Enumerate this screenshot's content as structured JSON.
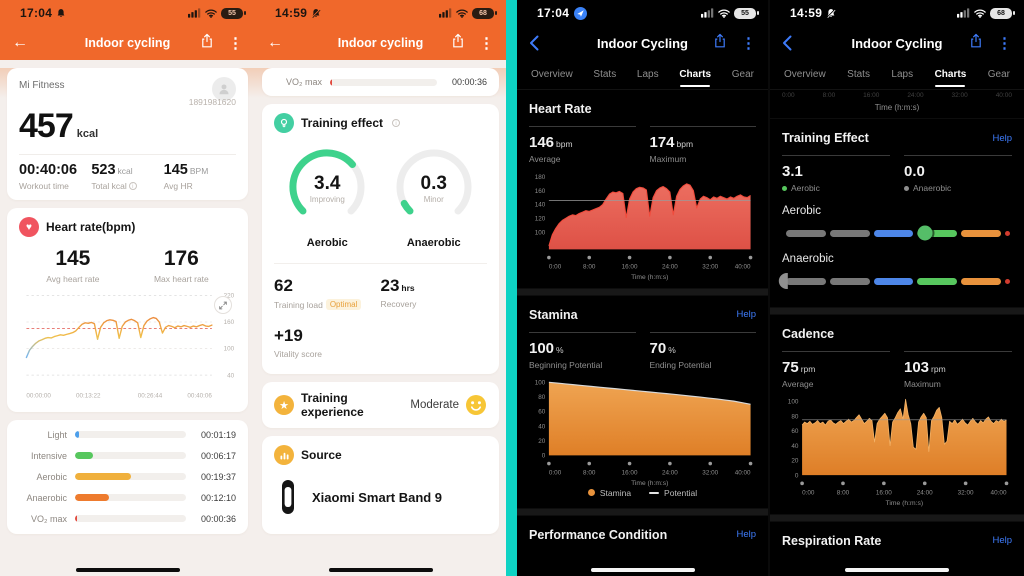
{
  "colors": {
    "orange_header": "#F0682B",
    "teal_divider": "#0ED3C4",
    "gauge_green": "#3ED28C",
    "help_blue": "#3E7BFA",
    "hr_fill_dark": "#E2584C",
    "cadence_fill_dark": "#E8923C"
  },
  "mi1": {
    "status": {
      "time": "17:04",
      "battery": "55"
    },
    "nav": {
      "title": "Indoor cycling"
    },
    "summary": {
      "app_name": "Mi Fitness",
      "record_id": "1891981620",
      "calories": "457",
      "calories_unit": "kcal",
      "stats": [
        {
          "value": "00:40:06",
          "unit": "",
          "label": "Workout time"
        },
        {
          "value": "523",
          "unit": "kcal",
          "label": "Total kcal"
        },
        {
          "value": "145",
          "unit": "BPM",
          "label": "Avg HR"
        }
      ]
    },
    "heart_rate": {
      "title": "Heart rate(bpm)",
      "avg_value": "145",
      "avg_label": "Avg heart rate",
      "max_value": "176",
      "max_label": "Max heart rate"
    },
    "zones": [
      {
        "label": "Light",
        "time": "00:01:19",
        "pct": 4,
        "color": "#4D9FEB"
      },
      {
        "label": "Intensive",
        "time": "00:06:17",
        "pct": 16,
        "color": "#57C75E"
      },
      {
        "label": "Aerobic",
        "time": "00:19:37",
        "pct": 50,
        "color": "#F0B03C"
      },
      {
        "label": "Anaerobic",
        "time": "00:12:10",
        "pct": 31,
        "color": "#EE7B2E"
      },
      {
        "label": "VO₂ max",
        "time": "00:00:36",
        "pct": 1.8,
        "color": "#E24B40"
      }
    ]
  },
  "mi2": {
    "status": {
      "time": "14:59",
      "battery": "68"
    },
    "nav": {
      "title": "Indoor cycling"
    },
    "vo2_row": {
      "label": "VO₂ max",
      "time": "00:00:36",
      "pct": 1.8,
      "color": "#E24B40"
    },
    "training_effect": {
      "title": "Training effect",
      "gauges": [
        {
          "value": "3.4",
          "sub": "Improving",
          "label": "Aerobic",
          "fraction": 0.68
        },
        {
          "value": "0.3",
          "sub": "Minor",
          "label": "Anaerobic",
          "fraction": 0.06
        }
      ],
      "load_value": "62",
      "load_label": "Training load",
      "load_badge": "Optimal",
      "recovery_value": "23",
      "recovery_unit": "hrs",
      "recovery_label": "Recovery",
      "vitality_value": "+19",
      "vitality_label": "Vitality score"
    },
    "experience": {
      "title": "Training experience",
      "value": "Moderate"
    },
    "source": {
      "title": "Source",
      "device": "Xiaomi Smart Band 9"
    }
  },
  "zepp1": {
    "status": {
      "time": "17:04",
      "battery": "55"
    },
    "nav": {
      "title": "Indoor Cycling"
    },
    "tabs": [
      "Overview",
      "Stats",
      "Laps",
      "Charts",
      "Gear"
    ],
    "heart_rate": {
      "title": "Heart Rate",
      "stats": [
        {
          "value": "146",
          "unit": "bpm",
          "label": "Average"
        },
        {
          "value": "174",
          "unit": "bpm",
          "label": "Maximum"
        }
      ]
    },
    "stamina": {
      "title": "Stamina",
      "help": "Help",
      "stats": [
        {
          "value": "100",
          "unit": "%",
          "label": "Beginning Potential"
        },
        {
          "value": "70",
          "unit": "%",
          "label": "Ending Potential"
        }
      ],
      "legend": [
        {
          "label": "Stamina"
        },
        {
          "label": "Potential"
        }
      ]
    },
    "performance": {
      "title": "Performance Condition",
      "help": "Help"
    }
  },
  "zepp2": {
    "status": {
      "time": "14:59",
      "battery": "68"
    },
    "nav": {
      "title": "Indoor Cycling"
    },
    "tabs": [
      "Overview",
      "Stats",
      "Laps",
      "Charts",
      "Gear"
    ],
    "partial_axis_label": "Time (h:m:s)",
    "training_effect": {
      "title": "Training Effect",
      "help": "Help",
      "stats": [
        {
          "value": "3.1",
          "label": "Aerobic",
          "dot": "#57C75E"
        },
        {
          "value": "0.0",
          "label": "Anaerobic",
          "dot": "#8E8E8E"
        }
      ],
      "bars": [
        {
          "label": "Aerobic",
          "marker_pos": 0.62,
          "marker": "circle"
        },
        {
          "label": "Anaerobic",
          "marker_pos": 0.0,
          "marker": "half"
        }
      ],
      "segment_colors": [
        "#787878",
        "#787878",
        "#4D86E8",
        "#57C75E",
        "#E8923C"
      ],
      "tip_color": "#D23B2E"
    },
    "cadence": {
      "title": "Cadence",
      "stats": [
        {
          "value": "75",
          "unit": "rpm",
          "label": "Average"
        },
        {
          "value": "103",
          "unit": "rpm",
          "label": "Maximum"
        }
      ]
    },
    "respiration": {
      "title": "Respiration Rate",
      "help": "Help"
    }
  },
  "chart_data": [
    {
      "id": "mi_hr",
      "type": "line",
      "title": "Heart rate (bpm) over workout",
      "x_ticks": [
        "00:00:00",
        "00:13:22",
        "00:26:44",
        "00:40:06"
      ],
      "y_ticks": [
        220,
        160,
        100,
        40
      ],
      "ylim": [
        40,
        220
      ],
      "grid_lines": [
        160,
        100
      ],
      "avg_line": 145,
      "values": [
        80,
        96,
        105,
        112,
        117,
        120,
        123,
        125,
        124,
        127,
        129,
        131,
        130,
        132,
        134,
        136,
        140,
        148,
        155,
        158,
        157,
        159,
        156,
        121,
        148,
        158,
        163,
        165,
        164,
        161,
        123,
        150,
        160,
        164,
        166,
        163,
        158,
        125,
        152,
        162,
        167,
        170,
        168,
        160,
        135,
        148,
        152,
        150,
        147,
        151,
        149,
        152,
        150,
        148,
        151,
        149,
        152,
        154,
        151,
        150,
        153
      ]
    },
    {
      "id": "zepp_hr",
      "type": "area",
      "x_ticks": [
        "0:00",
        "8:00",
        "16:00",
        "24:00",
        "32:00",
        "40:00"
      ],
      "xlabel": "Time (h:m:s)",
      "y_ticks": [
        180,
        160,
        140,
        120,
        100
      ],
      "ylim": [
        75,
        185
      ],
      "avg_line": 146,
      "values": [
        80,
        96,
        105,
        112,
        117,
        120,
        123,
        125,
        124,
        127,
        129,
        131,
        130,
        132,
        134,
        136,
        140,
        148,
        155,
        158,
        157,
        159,
        156,
        121,
        148,
        158,
        163,
        165,
        164,
        161,
        123,
        150,
        160,
        164,
        166,
        163,
        158,
        125,
        152,
        162,
        167,
        170,
        168,
        160,
        135,
        148,
        152,
        150,
        147,
        151,
        149,
        152,
        150,
        148,
        151,
        149,
        152,
        154,
        151,
        150,
        153
      ]
    },
    {
      "id": "stamina",
      "type": "area",
      "x_ticks": [
        "0:00",
        "8:00",
        "16:00",
        "24:00",
        "32:00",
        "40:00"
      ],
      "xlabel": "Time (h:m:s)",
      "y_ticks": [
        100,
        80,
        60,
        40,
        20,
        0
      ],
      "ylim": [
        0,
        104
      ],
      "series_names": [
        "Stamina",
        "Potential"
      ],
      "values": [
        100,
        99,
        97.8,
        96.7,
        95.6,
        94.5,
        93.4,
        92.3,
        91.2,
        90.1,
        89,
        87.9,
        86.8,
        85.7,
        84.6,
        83.4,
        82.2,
        81,
        79.8,
        78.5,
        77.2,
        75.8,
        74.3,
        72.2,
        70
      ]
    },
    {
      "id": "cadence",
      "type": "area",
      "x_ticks": [
        "0:00",
        "8:00",
        "16:00",
        "24:00",
        "32:00",
        "40:00"
      ],
      "xlabel": "Time (h:m:s)",
      "y_ticks": [
        100,
        80,
        60,
        40,
        20,
        0
      ],
      "ylim": [
        0,
        104
      ],
      "avg_line": 75,
      "values": [
        68,
        72,
        70,
        73,
        69,
        71,
        74,
        70,
        72,
        68,
        73,
        75,
        71,
        69,
        72,
        74,
        70,
        73,
        76,
        72,
        74,
        78,
        82,
        76,
        70,
        73,
        77,
        74,
        45,
        70,
        76,
        80,
        84,
        78,
        40,
        72,
        78,
        85,
        90,
        76,
        103,
        82,
        70,
        38,
        35,
        72,
        79,
        84,
        78,
        32,
        74,
        80,
        88,
        92,
        78,
        42,
        46,
        73,
        70,
        75,
        69,
        72,
        76,
        71,
        68,
        73,
        77,
        72,
        69,
        74,
        71,
        76,
        79,
        73,
        70,
        74,
        72,
        76,
        73,
        75
      ]
    }
  ]
}
